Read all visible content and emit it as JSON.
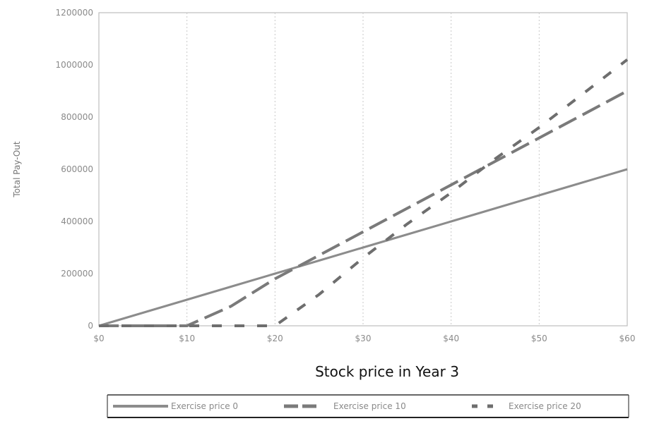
{
  "chart_data": {
    "type": "line",
    "title": "",
    "xlabel": "Stock price in Year 3",
    "ylabel": "Total Pay-Out",
    "x": [
      0,
      5,
      10,
      15,
      20,
      25,
      30,
      35,
      40,
      45,
      50,
      55,
      60
    ],
    "x_tick_labels": [
      "$0",
      "$10",
      "$20",
      "$30",
      "$40",
      "$50",
      "$60"
    ],
    "x_ticks": [
      0,
      10,
      20,
      30,
      40,
      50,
      60
    ],
    "y_ticks": [
      0,
      200000,
      400000,
      600000,
      800000,
      1000000,
      1200000
    ],
    "y_tick_labels": [
      "0",
      "200000",
      "400000",
      "600000",
      "800000",
      "1000000",
      "1200000"
    ],
    "xlim": [
      0,
      60
    ],
    "ylim": [
      0,
      1200000
    ],
    "grid": true,
    "legend_position": "bottom",
    "series": [
      {
        "name": "Exercise price 0",
        "style": "solid",
        "color": "#8c8c8c",
        "values": [
          0,
          50000,
          100000,
          150000,
          200000,
          250000,
          300000,
          350000,
          400000,
          450000,
          500000,
          550000,
          600000
        ]
      },
      {
        "name": "Exercise price 10",
        "style": "long-dash",
        "color": "#7a7a7a",
        "values": [
          0,
          0,
          0,
          75000,
          180000,
          270000,
          360000,
          450000,
          540000,
          630000,
          720000,
          810000,
          900000
        ]
      },
      {
        "name": "Exercise price 20",
        "style": "dash",
        "color": "#6e6e6e",
        "values": [
          0,
          0,
          0,
          0,
          0,
          120000,
          260000,
          390000,
          510000,
          640000,
          760000,
          890000,
          1020000
        ]
      }
    ]
  }
}
